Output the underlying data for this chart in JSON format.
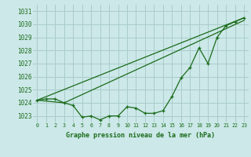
{
  "title": "Graphe pression niveau de la mer (hPa)",
  "bg_color": "#cce8e8",
  "grid_color": "#aacccc",
  "line_color": "#1a6b1a",
  "xlim": [
    -0.5,
    23.5
  ],
  "ylim": [
    1022.5,
    1031.5
  ],
  "yticks": [
    1023,
    1024,
    1025,
    1026,
    1027,
    1028,
    1029,
    1030,
    1031
  ],
  "xticks": [
    0,
    1,
    2,
    3,
    4,
    5,
    6,
    7,
    8,
    9,
    10,
    11,
    12,
    13,
    14,
    15,
    16,
    17,
    18,
    19,
    20,
    21,
    22,
    23
  ],
  "line1_x": [
    0,
    1,
    2,
    3,
    4,
    5,
    6,
    7,
    8,
    9,
    10,
    11,
    12,
    13,
    14,
    15,
    16,
    17,
    18,
    19,
    20,
    21,
    22,
    23
  ],
  "line1_y": [
    1024.2,
    1024.3,
    1024.3,
    1024.0,
    1023.8,
    1022.9,
    1023.0,
    1022.7,
    1023.0,
    1023.0,
    1023.7,
    1023.6,
    1023.2,
    1023.2,
    1023.4,
    1024.5,
    1025.9,
    1026.7,
    1028.2,
    1027.0,
    1029.0,
    1029.9,
    1030.2,
    1030.5
  ],
  "line2_x": [
    0,
    23
  ],
  "line2_y": [
    1024.2,
    1030.5
  ],
  "line3_x": [
    0,
    3,
    23
  ],
  "line3_y": [
    1024.2,
    1024.0,
    1030.3
  ],
  "xlabel_color": "#1a6b1a",
  "tick_color": "#1a6b1a",
  "xlabel_fontsize": 6.0,
  "ytick_fontsize": 5.5,
  "xtick_fontsize": 4.8
}
